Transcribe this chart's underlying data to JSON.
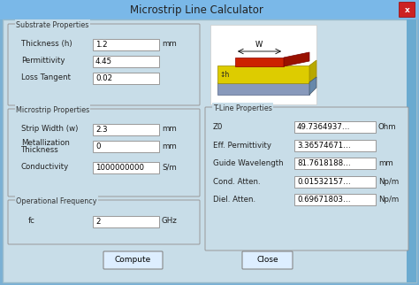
{
  "title": "Microstrip Line Calculator",
  "outer_bg": "#7ab0d4",
  "window_bg": "#c8dde8",
  "titlebar_bg": "#7ab8e8",
  "input_bg": "#ffffff",
  "group_bg": "#c8dde8",
  "substrate_group": "Substrate Properties",
  "microstrip_group": "Microstrip Properties",
  "freq_group": "Operational Frequency",
  "tline_group": "T-Line Properties",
  "substrate_fields": [
    {
      "label": "Thickness (h)",
      "value": "1.2",
      "unit": "mm"
    },
    {
      "label": "Permittivity",
      "value": "4.45",
      "unit": ""
    },
    {
      "label": "Loss Tangent",
      "value": "0.02",
      "unit": ""
    }
  ],
  "microstrip_fields": [
    {
      "label": "Strip Width (w)",
      "value": "2.3",
      "unit": "mm"
    },
    {
      "label": "Metallization\nThickness",
      "value": "0",
      "unit": "mm"
    },
    {
      "label": "Conductivity",
      "value": "1000000000",
      "unit": "S/m"
    }
  ],
  "freq_fields": [
    {
      "label": "fc",
      "value": "2",
      "unit": "GHz"
    }
  ],
  "tline_fields": [
    {
      "label": "Z0",
      "value": "49.7364937…",
      "unit": "Ohm"
    },
    {
      "label": "Eff. Permittivity",
      "value": "3.36574671…",
      "unit": ""
    },
    {
      "label": "Guide Wavelength",
      "value": "81.7618188…",
      "unit": "mm"
    },
    {
      "label": "Cond. Atten.",
      "value": "0.01532157…",
      "unit": "Np/m"
    },
    {
      "label": "Diel. Atten.",
      "value": "0.69671803…",
      "unit": "Np/m"
    }
  ],
  "compute_btn": "Compute",
  "close_btn": "Close",
  "diagram_bg": "#ffffff",
  "strip_color": "#cc2200",
  "substrate_color": "#ddcc00",
  "ground_color": "#8899bb"
}
